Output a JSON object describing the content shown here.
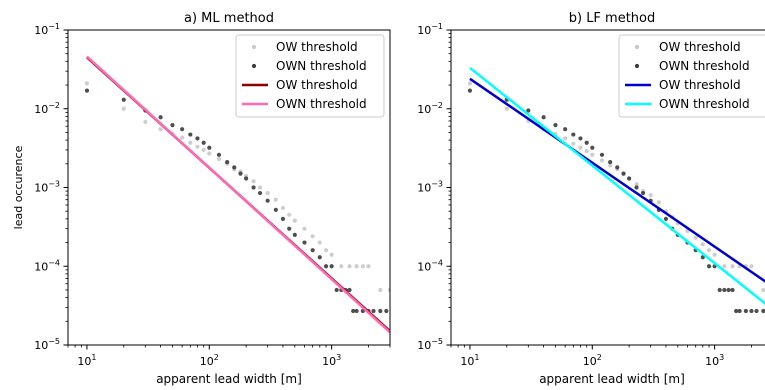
{
  "chart_data": [
    {
      "type": "scatter",
      "title": "a) ML method",
      "xlabel": "apparent lead width [m]",
      "ylabel": "lead occurence",
      "xscale": "log",
      "yscale": "log",
      "xlim": [
        7,
        3000
      ],
      "ylim": [
        1e-05,
        0.1
      ],
      "x_ticks": [
        {
          "value": 10,
          "base": "10",
          "exp": "1"
        },
        {
          "value": 100,
          "base": "10",
          "exp": "2"
        },
        {
          "value": 1000,
          "base": "10",
          "exp": "3"
        }
      ],
      "y_ticks": [
        {
          "value": 1e-05,
          "base": "10",
          "exp": "−5"
        },
        {
          "value": 0.0001,
          "base": "10",
          "exp": "−4"
        },
        {
          "value": 0.001,
          "base": "10",
          "exp": "−3"
        },
        {
          "value": 0.01,
          "base": "10",
          "exp": "−2"
        },
        {
          "value": 0.1,
          "base": "10",
          "exp": "−1"
        }
      ],
      "legend_position": "top-right",
      "points": [
        {
          "name": "OW threshold",
          "color": "#c8c8c8",
          "x": [
            10,
            20,
            30,
            40,
            50,
            60,
            70,
            80,
            90,
            100,
            120,
            140,
            160,
            180,
            200,
            230,
            260,
            300,
            350,
            400,
            450,
            500,
            600,
            700,
            800,
            900,
            1000,
            1200,
            1400,
            1600,
            1800,
            2000,
            2500,
            3000
          ],
          "y": [
            0.021,
            0.01,
            0.0068,
            0.0055,
            0.0048,
            0.0043,
            0.0037,
            0.0033,
            0.003,
            0.0027,
            0.0023,
            0.002,
            0.0017,
            0.0016,
            0.0014,
            0.0012,
            0.001,
            0.00085,
            0.0007,
            0.00055,
            0.00045,
            0.00038,
            0.0003,
            0.00024,
            0.0002,
            0.00016,
            0.00014,
            0.0001,
            0.0001,
            0.0001,
            0.0001,
            0.0001,
            5e-05,
            5e-05
          ]
        },
        {
          "name": "OWN threshold",
          "color": "#3c3c3c",
          "x": [
            10,
            20,
            30,
            40,
            50,
            60,
            70,
            80,
            90,
            100,
            120,
            140,
            160,
            180,
            200,
            230,
            260,
            300,
            350,
            400,
            450,
            500,
            600,
            700,
            800,
            900,
            1000,
            1100,
            1200,
            1300,
            1400,
            1500,
            1600,
            1800,
            2000,
            2200,
            2500,
            2800
          ],
          "y": [
            0.017,
            0.013,
            0.0095,
            0.0078,
            0.0062,
            0.0055,
            0.0047,
            0.0042,
            0.0037,
            0.0032,
            0.0026,
            0.0021,
            0.0018,
            0.0015,
            0.0013,
            0.001,
            0.00085,
            0.00068,
            0.00052,
            0.0004,
            0.0003,
            0.00025,
            0.0002,
            0.00016,
            0.00013,
            0.0001,
            0.0001,
            5e-05,
            5e-05,
            5e-05,
            5e-05,
            2.7e-05,
            2.7e-05,
            2.7e-05,
            2.7e-05,
            2.7e-05,
            2.7e-05,
            2.7e-05
          ]
        }
      ],
      "lines": [
        {
          "name": "OW threshold",
          "color": "#8b0000",
          "x": [
            10,
            3000
          ],
          "y": [
            0.045,
            1.5e-05
          ]
        },
        {
          "name": "OWN threshold",
          "color": "#ff69b4",
          "x": [
            10,
            3000
          ],
          "y": [
            0.046,
            1.45e-05
          ]
        }
      ]
    },
    {
      "type": "scatter",
      "title": "b) LF method",
      "xlabel": "apparent lead width [m]",
      "ylabel": "",
      "xscale": "log",
      "yscale": "log",
      "xlim": [
        7,
        3000
      ],
      "ylim": [
        1e-05,
        0.1
      ],
      "x_ticks": [
        {
          "value": 10,
          "base": "10",
          "exp": "1"
        },
        {
          "value": 100,
          "base": "10",
          "exp": "2"
        },
        {
          "value": 1000,
          "base": "10",
          "exp": "3"
        }
      ],
      "y_ticks": [
        {
          "value": 1e-05,
          "base": "10",
          "exp": "−5"
        },
        {
          "value": 0.0001,
          "base": "10",
          "exp": "−4"
        },
        {
          "value": 0.001,
          "base": "10",
          "exp": "−3"
        },
        {
          "value": 0.01,
          "base": "10",
          "exp": "−2"
        },
        {
          "value": 0.1,
          "base": "10",
          "exp": "−1"
        }
      ],
      "legend_position": "top-right",
      "points": [
        {
          "name": "OW threshold",
          "color": "#c8c8c8",
          "x": [
            10,
            20,
            30,
            40,
            50,
            60,
            70,
            80,
            90,
            100,
            120,
            140,
            160,
            180,
            200,
            230,
            260,
            300,
            350,
            400,
            450,
            500,
            600,
            700,
            800,
            900,
            1000,
            1200,
            1400,
            1600,
            1800,
            2000,
            2500,
            3000
          ],
          "y": [
            0.021,
            0.01,
            0.007,
            0.0055,
            0.0048,
            0.0042,
            0.0036,
            0.0032,
            0.0029,
            0.0026,
            0.0022,
            0.0019,
            0.0017,
            0.0015,
            0.0013,
            0.0011,
            0.0009,
            0.0008,
            0.00065,
            0.0005,
            0.00042,
            0.00035,
            0.00028,
            0.00023,
            0.00019,
            0.00016,
            0.00014,
            0.0001,
            0.0001,
            0.0001,
            0.0001,
            0.0001,
            5e-05,
            5e-05
          ]
        },
        {
          "name": "OWN threshold",
          "color": "#3c3c3c",
          "x": [
            10,
            20,
            30,
            40,
            50,
            60,
            70,
            80,
            90,
            100,
            120,
            140,
            160,
            180,
            200,
            230,
            260,
            300,
            350,
            400,
            450,
            500,
            600,
            700,
            800,
            900,
            1000,
            1100,
            1200,
            1300,
            1400,
            1500,
            1600,
            1800,
            2000,
            2200,
            2500,
            2800
          ],
          "y": [
            0.017,
            0.013,
            0.0095,
            0.0078,
            0.0062,
            0.0055,
            0.0047,
            0.0042,
            0.0037,
            0.0032,
            0.0026,
            0.0021,
            0.0018,
            0.0015,
            0.0013,
            0.001,
            0.00085,
            0.00068,
            0.00052,
            0.0004,
            0.0003,
            0.00025,
            0.0002,
            0.00016,
            0.00013,
            0.0001,
            0.0001,
            5e-05,
            5e-05,
            5e-05,
            5e-05,
            2.7e-05,
            2.7e-05,
            2.7e-05,
            2.7e-05,
            2.7e-05,
            2.7e-05,
            2.7e-05
          ]
        }
      ],
      "lines": [
        {
          "name": "OW threshold",
          "color": "#0000cd",
          "x": [
            10,
            3000
          ],
          "y": [
            0.024,
            5.5e-05
          ]
        },
        {
          "name": "OWN threshold",
          "color": "#00ffff",
          "x": [
            10,
            3000
          ],
          "y": [
            0.033,
            2.8e-05
          ]
        }
      ]
    }
  ]
}
